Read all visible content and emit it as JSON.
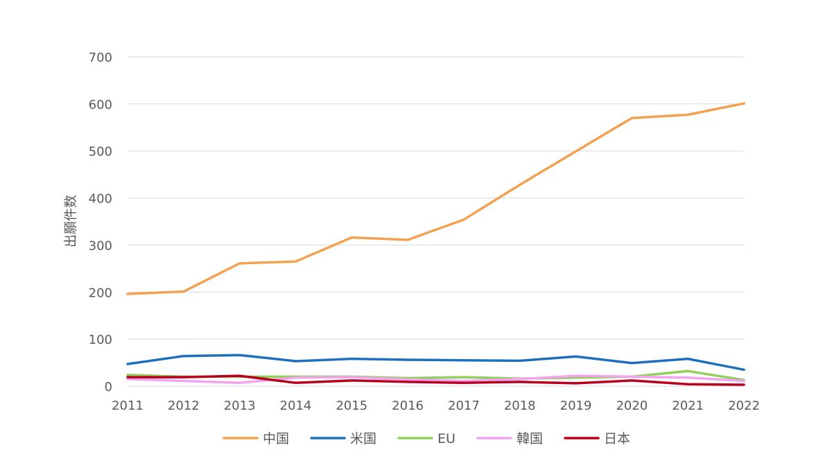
{
  "chart_data": {
    "type": "line",
    "title": "",
    "xlabel": "",
    "ylabel": "出願件数",
    "ylim": [
      0,
      700
    ],
    "yticks": [
      0,
      100,
      200,
      300,
      400,
      500,
      600,
      700
    ],
    "grid": true,
    "legend_position": "bottom",
    "categories": [
      "2011",
      "2012",
      "2013",
      "2014",
      "2015",
      "2016",
      "2017",
      "2018",
      "2019",
      "2020",
      "2021",
      "2022"
    ],
    "series": [
      {
        "name": "中国",
        "color": "#f4a04f",
        "values": [
          196,
          201,
          261,
          265,
          316,
          311,
          354,
          428,
          499,
          570,
          577,
          601
        ]
      },
      {
        "name": "米国",
        "color": "#1f6fbf",
        "values": [
          47,
          64,
          66,
          53,
          58,
          56,
          55,
          54,
          63,
          49,
          58,
          35
        ]
      },
      {
        "name": "EU",
        "color": "#8fcf5a",
        "values": [
          24,
          20,
          20,
          20,
          20,
          17,
          19,
          16,
          18,
          20,
          32,
          13
        ]
      },
      {
        "name": "韓国",
        "color": "#f4a3f0",
        "values": [
          15,
          11,
          7,
          18,
          19,
          14,
          11,
          15,
          22,
          20,
          18,
          11
        ]
      },
      {
        "name": "日本",
        "color": "#b8001f",
        "values": [
          19,
          19,
          22,
          7,
          12,
          9,
          7,
          9,
          6,
          12,
          4,
          3
        ]
      }
    ]
  }
}
